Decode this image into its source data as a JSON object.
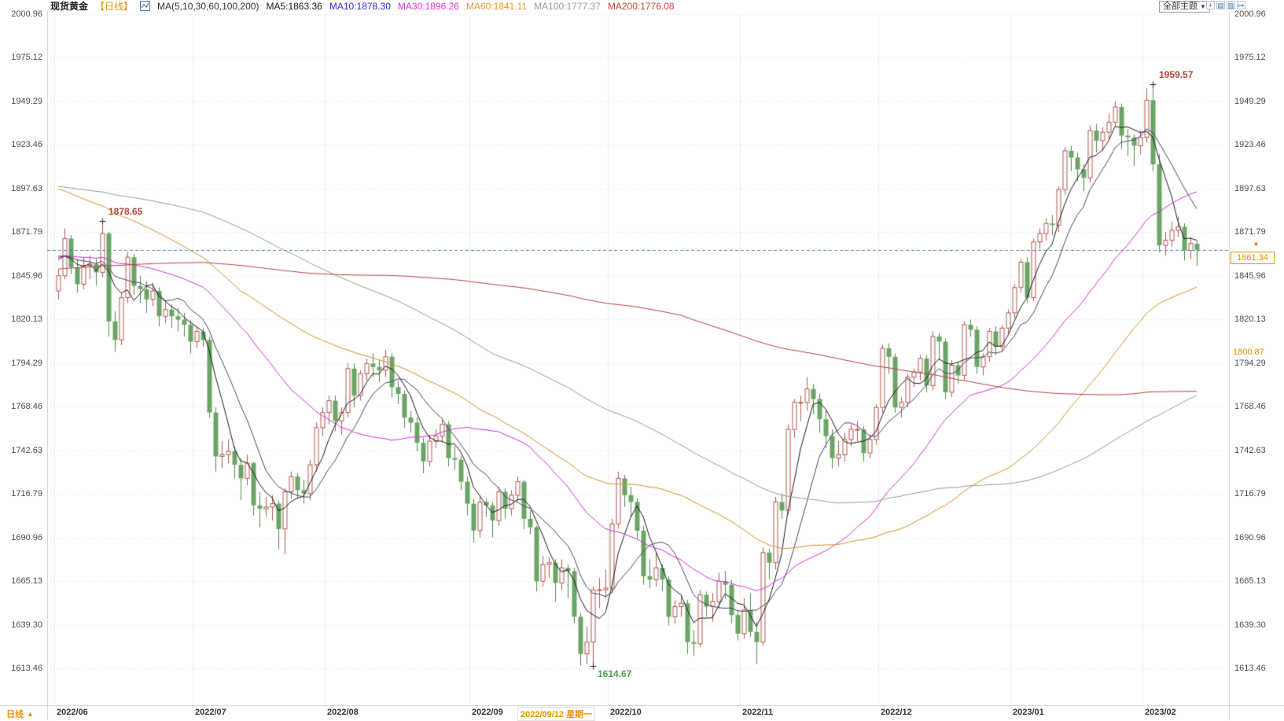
{
  "header": {
    "title": "现货黄金",
    "period_tag": "【日线】",
    "chart_icon": "candlestick-chart-icon",
    "ma_group_label": "MA(5,10,30,60,100,200)",
    "ma_items": [
      {
        "label": "MA5:1863.36",
        "color": "#1a1a1a"
      },
      {
        "label": "MA10:1878.30",
        "color": "#2d2dd8"
      },
      {
        "label": "MA30:1896.26",
        "color": "#e032e0"
      },
      {
        "label": "MA60:1841.11",
        "color": "#e09a2a"
      },
      {
        "label": "MA100:1777.37",
        "color": "#999999"
      },
      {
        "label": "MA200:1776.08",
        "color": "#cc4437"
      }
    ],
    "theme_button": {
      "label": "全部主题",
      "arrow": "▼"
    },
    "toolbar_icons": [
      "pan-icon",
      "left-panel-icon",
      "right-panel-icon",
      "export-icon"
    ]
  },
  "crosshair": {
    "date_label": "2022/09/12 星期一",
    "price_label": "1800.87",
    "index": 73
  },
  "current_price": {
    "label": "1861.34",
    "value": 1861.34,
    "arrow": "▲"
  },
  "annotations": [
    {
      "text": "1878.65",
      "index": 7,
      "price": 1878.65,
      "color": "#b5453c",
      "placement": "above-right"
    },
    {
      "text": "1959.57",
      "index": 174,
      "price": 1959.57,
      "color": "#b5453c",
      "placement": "above-right"
    },
    {
      "text": "1614.67",
      "index": 85,
      "price": 1614.67,
      "color": "#4f9e52",
      "placement": "below-right"
    }
  ],
  "footer": {
    "period_label": "日线",
    "arrow": "▲"
  },
  "chart_data": {
    "type": "candlestick",
    "title": "现货黄金 日线",
    "interval": "daily",
    "y_range": [
      1613.46,
      2000.96
    ],
    "y_ticks": [
      "2000.96",
      "1975.12",
      "1949.29",
      "1923.46",
      "1897.63",
      "1871.79",
      "1845.96",
      "1820.13",
      "1794.29",
      "1768.46",
      "1742.63",
      "1716.79",
      "1690.96",
      "1665.13",
      "1639.30",
      "1613.46"
    ],
    "x_ticks": [
      {
        "label": "2022/06",
        "index": 0
      },
      {
        "label": "2022/07",
        "index": 22
      },
      {
        "label": "2022/08",
        "index": 43
      },
      {
        "label": "2022/09",
        "index": 66
      },
      {
        "label": "2022/10",
        "index": 88
      },
      {
        "label": "2022/11",
        "index": 109
      },
      {
        "label": "2022/12",
        "index": 131
      },
      {
        "label": "2023/01",
        "index": 152
      },
      {
        "label": "2023/02",
        "index": 173
      }
    ],
    "ma_periods": [
      5,
      10,
      30,
      60,
      100,
      200
    ],
    "ma_colors": {
      "5": "#1a1a1a",
      "10": "#45456e",
      "30": "#d42fd4",
      "60": "#d09028",
      "100": "#999999",
      "200": "#b4443c"
    },
    "ma_seed_segments": [
      [
        100,
        1800
      ],
      [
        40,
        1900
      ],
      [
        30,
        1940
      ],
      [
        30,
        1858
      ]
    ],
    "colors": {
      "up_stroke": "#b05a50",
      "up_fill": "#ffffff",
      "down_fill": "#6ba565",
      "down_stroke": "#4f8a4a",
      "current_price_line": "#4f86ad",
      "grid": "#e2e2e2",
      "axis_edge": "#cccccc"
    },
    "candles": [
      [
        1837,
        1850,
        1832,
        1846
      ],
      [
        1846,
        1874,
        1844,
        1868
      ],
      [
        1868,
        1870,
        1847,
        1851
      ],
      [
        1851,
        1856,
        1836,
        1841
      ],
      [
        1841,
        1857,
        1838,
        1852
      ],
      [
        1852,
        1858,
        1844,
        1853
      ],
      [
        1853,
        1856,
        1840,
        1848
      ],
      [
        1848,
        1878.65,
        1845,
        1871
      ],
      [
        1871,
        1872,
        1810,
        1819
      ],
      [
        1819,
        1825,
        1801,
        1808
      ],
      [
        1808,
        1836,
        1805,
        1833
      ],
      [
        1833,
        1860,
        1830,
        1857
      ],
      [
        1857,
        1859,
        1835,
        1840
      ],
      [
        1840,
        1846,
        1830,
        1838
      ],
      [
        1838,
        1843,
        1824,
        1832
      ],
      [
        1832,
        1842,
        1828,
        1837
      ],
      [
        1837,
        1839,
        1816,
        1822
      ],
      [
        1822,
        1831,
        1818,
        1826
      ],
      [
        1826,
        1829,
        1815,
        1822
      ],
      [
        1822,
        1827,
        1813,
        1820
      ],
      [
        1820,
        1824,
        1810,
        1817
      ],
      [
        1817,
        1820,
        1800,
        1807
      ],
      [
        1807,
        1816,
        1803,
        1813
      ],
      [
        1813,
        1815,
        1804,
        1808
      ],
      [
        1808,
        1810,
        1762,
        1765
      ],
      [
        1765,
        1768,
        1730,
        1739
      ],
      [
        1739,
        1748,
        1732,
        1740
      ],
      [
        1740,
        1749,
        1735,
        1742
      ],
      [
        1742,
        1745,
        1726,
        1734
      ],
      [
        1734,
        1738,
        1713,
        1726
      ],
      [
        1726,
        1740,
        1722,
        1735
      ],
      [
        1735,
        1736,
        1704,
        1710
      ],
      [
        1710,
        1718,
        1697,
        1708
      ],
      [
        1708,
        1715,
        1703,
        1709
      ],
      [
        1709,
        1716,
        1701,
        1711
      ],
      [
        1711,
        1713,
        1684,
        1696
      ],
      [
        1696,
        1720,
        1681,
        1718
      ],
      [
        1718,
        1730,
        1714,
        1727
      ],
      [
        1727,
        1729,
        1714,
        1719
      ],
      [
        1719,
        1725,
        1711,
        1717
      ],
      [
        1717,
        1737,
        1713,
        1734
      ],
      [
        1734,
        1759,
        1730,
        1756
      ],
      [
        1756,
        1768,
        1751,
        1765
      ],
      [
        1765,
        1775,
        1758,
        1772
      ],
      [
        1772,
        1775,
        1754,
        1760
      ],
      [
        1760,
        1768,
        1752,
        1765
      ],
      [
        1765,
        1794,
        1762,
        1791
      ],
      [
        1791,
        1794,
        1768,
        1775
      ],
      [
        1775,
        1790,
        1772,
        1788
      ],
      [
        1788,
        1797,
        1784,
        1794
      ],
      [
        1794,
        1800,
        1786,
        1792
      ],
      [
        1792,
        1796,
        1783,
        1790
      ],
      [
        1790,
        1802,
        1786,
        1798
      ],
      [
        1798,
        1800,
        1774,
        1780
      ],
      [
        1780,
        1784,
        1770,
        1776
      ],
      [
        1776,
        1778,
        1756,
        1762
      ],
      [
        1762,
        1766,
        1753,
        1759
      ],
      [
        1759,
        1762,
        1742,
        1747
      ],
      [
        1747,
        1750,
        1729,
        1736
      ],
      [
        1736,
        1752,
        1733,
        1748
      ],
      [
        1748,
        1755,
        1744,
        1751
      ],
      [
        1751,
        1761,
        1747,
        1758
      ],
      [
        1758,
        1760,
        1733,
        1738
      ],
      [
        1738,
        1745,
        1731,
        1737
      ],
      [
        1737,
        1739,
        1719,
        1724
      ],
      [
        1724,
        1727,
        1704,
        1711
      ],
      [
        1711,
        1714,
        1688,
        1695
      ],
      [
        1695,
        1716,
        1691,
        1712
      ],
      [
        1712,
        1714,
        1703,
        1710
      ],
      [
        1710,
        1712,
        1691,
        1701
      ],
      [
        1701,
        1721,
        1698,
        1718
      ],
      [
        1718,
        1720,
        1702,
        1708
      ],
      [
        1708,
        1719,
        1704,
        1716
      ],
      [
        1716,
        1727,
        1712,
        1724
      ],
      [
        1724,
        1725,
        1696,
        1702
      ],
      [
        1702,
        1707,
        1693,
        1697
      ],
      [
        1697,
        1698,
        1659,
        1665
      ],
      [
        1665,
        1680,
        1662,
        1675
      ],
      [
        1675,
        1679,
        1667,
        1676
      ],
      [
        1676,
        1678,
        1653,
        1664
      ],
      [
        1664,
        1678,
        1660,
        1673
      ],
      [
        1673,
        1675,
        1655,
        1671
      ],
      [
        1671,
        1673,
        1640,
        1644
      ],
      [
        1644,
        1646,
        1615,
        1622
      ],
      [
        1622,
        1638,
        1616,
        1629
      ],
      [
        1629,
        1662,
        1614.67,
        1660
      ],
      [
        1660,
        1667,
        1649,
        1660
      ],
      [
        1660,
        1672,
        1655,
        1661
      ],
      [
        1661,
        1702,
        1658,
        1699
      ],
      [
        1699,
        1730,
        1696,
        1726
      ],
      [
        1726,
        1728,
        1709,
        1716
      ],
      [
        1716,
        1721,
        1703,
        1712
      ],
      [
        1712,
        1714,
        1690,
        1695
      ],
      [
        1695,
        1698,
        1663,
        1668
      ],
      [
        1668,
        1678,
        1661,
        1666
      ],
      [
        1666,
        1682,
        1662,
        1673
      ],
      [
        1673,
        1675,
        1659,
        1666
      ],
      [
        1666,
        1668,
        1639,
        1644
      ],
      [
        1644,
        1654,
        1640,
        1650
      ],
      [
        1650,
        1656,
        1644,
        1652
      ],
      [
        1652,
        1654,
        1622,
        1629
      ],
      [
        1629,
        1636,
        1621,
        1628
      ],
      [
        1628,
        1660,
        1626,
        1657
      ],
      [
        1657,
        1659,
        1644,
        1650
      ],
      [
        1650,
        1658,
        1641,
        1653
      ],
      [
        1653,
        1670,
        1649,
        1665
      ],
      [
        1665,
        1671,
        1655,
        1663
      ],
      [
        1663,
        1666,
        1640,
        1645
      ],
      [
        1645,
        1648,
        1630,
        1634
      ],
      [
        1634,
        1655,
        1631,
        1648
      ],
      [
        1648,
        1658,
        1632,
        1635
      ],
      [
        1635,
        1641,
        1616,
        1629
      ],
      [
        1629,
        1685,
        1627,
        1682
      ],
      [
        1682,
        1684,
        1666,
        1676
      ],
      [
        1676,
        1715,
        1672,
        1712
      ],
      [
        1712,
        1717,
        1702,
        1707
      ],
      [
        1707,
        1758,
        1705,
        1755
      ],
      [
        1755,
        1773,
        1750,
        1771
      ],
      [
        1771,
        1775,
        1760,
        1771
      ],
      [
        1771,
        1786,
        1766,
        1779
      ],
      [
        1779,
        1782,
        1764,
        1773
      ],
      [
        1773,
        1776,
        1753,
        1761
      ],
      [
        1761,
        1766,
        1744,
        1751
      ],
      [
        1751,
        1755,
        1732,
        1738
      ],
      [
        1738,
        1748,
        1733,
        1740
      ],
      [
        1740,
        1753,
        1736,
        1749
      ],
      [
        1749,
        1758,
        1745,
        1755
      ],
      [
        1755,
        1760,
        1748,
        1755
      ],
      [
        1755,
        1757,
        1736,
        1741
      ],
      [
        1741,
        1752,
        1738,
        1749
      ],
      [
        1749,
        1770,
        1746,
        1768
      ],
      [
        1768,
        1805,
        1765,
        1803
      ],
      [
        1803,
        1806,
        1788,
        1798
      ],
      [
        1798,
        1800,
        1765,
        1768
      ],
      [
        1768,
        1774,
        1762,
        1771
      ],
      [
        1771,
        1788,
        1768,
        1786
      ],
      [
        1786,
        1791,
        1780,
        1789
      ],
      [
        1789,
        1799,
        1784,
        1797
      ],
      [
        1797,
        1799,
        1777,
        1781
      ],
      [
        1781,
        1813,
        1778,
        1810
      ],
      [
        1810,
        1812,
        1796,
        1807
      ],
      [
        1807,
        1809,
        1773,
        1777
      ],
      [
        1777,
        1796,
        1774,
        1793
      ],
      [
        1793,
        1795,
        1782,
        1787
      ],
      [
        1787,
        1819,
        1784,
        1817
      ],
      [
        1817,
        1820,
        1810,
        1814
      ],
      [
        1814,
        1816,
        1788,
        1792
      ],
      [
        1792,
        1800,
        1787,
        1798
      ],
      [
        1798,
        1815,
        1795,
        1813
      ],
      [
        1813,
        1816,
        1799,
        1804
      ],
      [
        1804,
        1817,
        1801,
        1815
      ],
      [
        1815,
        1826,
        1812,
        1824
      ],
      [
        1824,
        1841,
        1821,
        1839
      ],
      [
        1839,
        1856,
        1836,
        1854
      ],
      [
        1854,
        1857,
        1830,
        1833
      ],
      [
        1833,
        1868,
        1831,
        1866
      ],
      [
        1866,
        1874,
        1862,
        1871
      ],
      [
        1871,
        1880,
        1867,
        1877
      ],
      [
        1877,
        1882,
        1870,
        1876
      ],
      [
        1876,
        1899,
        1872,
        1897
      ],
      [
        1897,
        1922,
        1894,
        1920
      ],
      [
        1920,
        1923,
        1908,
        1916
      ],
      [
        1916,
        1919,
        1902,
        1909
      ],
      [
        1909,
        1912,
        1896,
        1904
      ],
      [
        1904,
        1935,
        1901,
        1932
      ],
      [
        1932,
        1936,
        1919,
        1926
      ],
      [
        1926,
        1934,
        1920,
        1931
      ],
      [
        1931,
        1942,
        1927,
        1937
      ],
      [
        1937,
        1949,
        1934,
        1946
      ],
      [
        1946,
        1948,
        1921,
        1929
      ],
      [
        1929,
        1933,
        1917,
        1928
      ],
      [
        1928,
        1930,
        1911,
        1923
      ],
      [
        1923,
        1932,
        1918,
        1928
      ],
      [
        1928,
        1957,
        1925,
        1950
      ],
      [
        1950,
        1959.57,
        1908,
        1912
      ],
      [
        1912,
        1918,
        1860,
        1864
      ],
      [
        1864,
        1872,
        1858,
        1867
      ],
      [
        1867,
        1878,
        1863,
        1873
      ],
      [
        1873,
        1881,
        1869,
        1875
      ],
      [
        1875,
        1877,
        1855,
        1861
      ],
      [
        1861,
        1869,
        1856,
        1865
      ],
      [
        1865,
        1867,
        1852,
        1861.34
      ]
    ]
  }
}
